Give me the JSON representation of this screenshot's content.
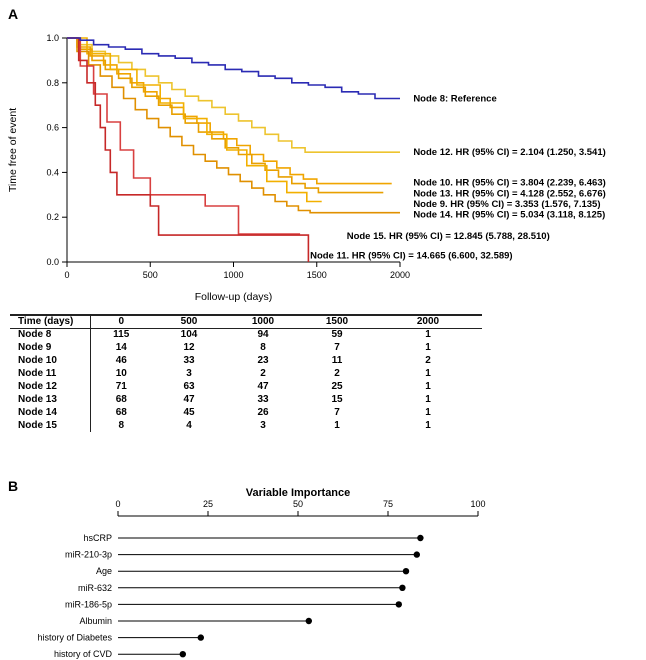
{
  "figure": {
    "panel_a_label": "A",
    "panel_b_label": "B"
  },
  "chart_data": [
    {
      "id": "km_plot",
      "type": "line",
      "subtype": "kaplan_meier_step",
      "xlabel": "Follow-up (days)",
      "ylabel": "Time free of event",
      "xlim": [
        0,
        2000
      ],
      "ylim": [
        0,
        1
      ],
      "x_ticks": [
        0,
        500,
        1000,
        1500,
        2000
      ],
      "y_ticks": [
        0,
        0.2,
        0.4,
        0.6,
        0.8,
        1
      ],
      "grid": false,
      "legend": "right-margin-annotations",
      "series": [
        {
          "name": "Node 12",
          "label": "Node 12. HR (95% CI) = 2.104 (1.250, 3.541)",
          "color": "#EDC42F",
          "label_x": 2080,
          "label_y": 0.49,
          "steps": [
            [
              0,
              1.0
            ],
            [
              70,
              0.97
            ],
            [
              150,
              0.94
            ],
            [
              230,
              0.92
            ],
            [
              310,
              0.89
            ],
            [
              390,
              0.86
            ],
            [
              470,
              0.83
            ],
            [
              550,
              0.8
            ],
            [
              630,
              0.77
            ],
            [
              710,
              0.74
            ],
            [
              790,
              0.72
            ],
            [
              870,
              0.69
            ],
            [
              950,
              0.66
            ],
            [
              1030,
              0.63
            ],
            [
              1110,
              0.6
            ],
            [
              1190,
              0.57
            ],
            [
              1270,
              0.54
            ],
            [
              1350,
              0.51
            ],
            [
              1430,
              0.49
            ],
            [
              2000,
              0.49
            ]
          ]
        },
        {
          "name": "Node 10",
          "label": "Node 10. HR (95% CI) = 3.804 (2.239, 6.463)",
          "color": "#F0A500",
          "label_x": 2080,
          "label_y": 0.355,
          "steps": [
            [
              0,
              1.0
            ],
            [
              60,
              0.96
            ],
            [
              140,
              0.92
            ],
            [
              220,
              0.88
            ],
            [
              300,
              0.84
            ],
            [
              380,
              0.8
            ],
            [
              460,
              0.76
            ],
            [
              540,
              0.73
            ],
            [
              620,
              0.69
            ],
            [
              700,
              0.65
            ],
            [
              780,
              0.62
            ],
            [
              860,
              0.58
            ],
            [
              940,
              0.55
            ],
            [
              1020,
              0.52
            ],
            [
              1100,
              0.48
            ],
            [
              1180,
              0.45
            ],
            [
              1260,
              0.42
            ],
            [
              1340,
              0.39
            ],
            [
              1420,
              0.37
            ],
            [
              1500,
              0.35
            ],
            [
              1950,
              0.35
            ]
          ]
        },
        {
          "name": "Node 13",
          "label": "Node 13. HR (95% CI) = 4.128 (2.552, 6.676)",
          "color": "#E8A000",
          "label_x": 2080,
          "label_y": 0.305,
          "steps": [
            [
              0,
              1.0
            ],
            [
              70,
              0.95
            ],
            [
              150,
              0.9
            ],
            [
              230,
              0.86
            ],
            [
              310,
              0.82
            ],
            [
              390,
              0.78
            ],
            [
              470,
              0.74
            ],
            [
              550,
              0.7
            ],
            [
              630,
              0.66
            ],
            [
              710,
              0.62
            ],
            [
              790,
              0.58
            ],
            [
              870,
              0.55
            ],
            [
              950,
              0.51
            ],
            [
              1030,
              0.48
            ],
            [
              1110,
              0.44
            ],
            [
              1190,
              0.41
            ],
            [
              1270,
              0.38
            ],
            [
              1350,
              0.35
            ],
            [
              1430,
              0.33
            ],
            [
              1510,
              0.31
            ],
            [
              1900,
              0.31
            ]
          ]
        },
        {
          "name": "Node 9",
          "label": "Node 9. HR (95% CI) = 3.353 (1.576, 7.135)",
          "color": "#F2B000",
          "label_x": 2080,
          "label_y": 0.258,
          "steps": [
            [
              0,
              1.0
            ],
            [
              120,
              0.93
            ],
            [
              260,
              0.86
            ],
            [
              420,
              0.79
            ],
            [
              560,
              0.71
            ],
            [
              700,
              0.64
            ],
            [
              840,
              0.57
            ],
            [
              960,
              0.5
            ],
            [
              1080,
              0.43
            ],
            [
              1200,
              0.36
            ],
            [
              1320,
              0.31
            ],
            [
              1440,
              0.27
            ],
            [
              1530,
              0.27
            ]
          ]
        },
        {
          "name": "Node 14",
          "label": "Node 14. HR (95% CI) = 5.034 (3.118, 8.125)",
          "color": "#E09000",
          "label_x": 2080,
          "label_y": 0.212,
          "steps": [
            [
              0,
              1.0
            ],
            [
              60,
              0.94
            ],
            [
              130,
              0.88
            ],
            [
              200,
              0.83
            ],
            [
              270,
              0.78
            ],
            [
              340,
              0.73
            ],
            [
              410,
              0.68
            ],
            [
              480,
              0.64
            ],
            [
              550,
              0.6
            ],
            [
              620,
              0.56
            ],
            [
              690,
              0.52
            ],
            [
              760,
              0.48
            ],
            [
              830,
              0.45
            ],
            [
              900,
              0.42
            ],
            [
              970,
              0.39
            ],
            [
              1040,
              0.36
            ],
            [
              1110,
              0.33
            ],
            [
              1180,
              0.3
            ],
            [
              1250,
              0.27
            ],
            [
              1320,
              0.25
            ],
            [
              1390,
              0.23
            ],
            [
              1460,
              0.22
            ],
            [
              2000,
              0.22
            ]
          ]
        },
        {
          "name": "Node 15",
          "label": "Node 15. HR (95% CI) = 12.845 (5.788, 28.510)",
          "color": "#D84040",
          "label_x": 1680,
          "label_y": 0.115,
          "steps": [
            [
              0,
              1.0
            ],
            [
              80,
              0.875
            ],
            [
              160,
              0.75
            ],
            [
              240,
              0.625
            ],
            [
              320,
              0.5
            ],
            [
              400,
              0.375
            ],
            [
              500,
              0.3
            ],
            [
              760,
              0.3
            ],
            [
              830,
              0.25
            ],
            [
              980,
              0.25
            ],
            [
              1030,
              0.125
            ],
            [
              1400,
              0.125
            ]
          ]
        },
        {
          "name": "Node 11",
          "label": "Node 11. HR (95% CI) = 14.665 (6.600, 32.589)",
          "color": "#C62828",
          "label_x": 1460,
          "label_y": 0.028,
          "steps": [
            [
              0,
              1.0
            ],
            [
              70,
              0.9
            ],
            [
              120,
              0.8
            ],
            [
              170,
              0.7
            ],
            [
              200,
              0.6
            ],
            [
              230,
              0.5
            ],
            [
              260,
              0.4
            ],
            [
              300,
              0.3
            ],
            [
              450,
              0.3
            ],
            [
              500,
              0.25
            ],
            [
              550,
              0.12
            ],
            [
              1400,
              0.12
            ],
            [
              1450,
              0.0
            ]
          ]
        },
        {
          "name": "Node 8",
          "label": "Node 8: Reference",
          "color": "#2B2BB4",
          "label_x": 2080,
          "label_y": 0.73,
          "steps": [
            [
              0,
              1.0
            ],
            [
              80,
              0.99
            ],
            [
              160,
              0.97
            ],
            [
              250,
              0.96
            ],
            [
              350,
              0.95
            ],
            [
              450,
              0.93
            ],
            [
              550,
              0.92
            ],
            [
              650,
              0.91
            ],
            [
              750,
              0.89
            ],
            [
              850,
              0.88
            ],
            [
              950,
              0.86
            ],
            [
              1050,
              0.85
            ],
            [
              1150,
              0.83
            ],
            [
              1250,
              0.82
            ],
            [
              1350,
              0.8
            ],
            [
              1450,
              0.79
            ],
            [
              1550,
              0.78
            ],
            [
              1650,
              0.76
            ],
            [
              1750,
              0.75
            ],
            [
              1850,
              0.73
            ],
            [
              2000,
              0.73
            ]
          ]
        }
      ]
    },
    {
      "id": "risk_table",
      "type": "table",
      "header": [
        "Time (days)",
        "0",
        "500",
        "1000",
        "1500",
        "2000"
      ],
      "rows": [
        {
          "label": "Node 8",
          "values": [
            "115",
            "104",
            "94",
            "59",
            "1"
          ]
        },
        {
          "label": "Node 9",
          "values": [
            "14",
            "12",
            "8",
            "7",
            "1"
          ]
        },
        {
          "label": "Node 10",
          "values": [
            "46",
            "33",
            "23",
            "11",
            "2"
          ]
        },
        {
          "label": "Node 11",
          "values": [
            "10",
            "3",
            "2",
            "2",
            "1"
          ]
        },
        {
          "label": "Node 12",
          "values": [
            "71",
            "63",
            "47",
            "25",
            "1"
          ]
        },
        {
          "label": "Node 13",
          "values": [
            "68",
            "47",
            "33",
            "15",
            "1"
          ]
        },
        {
          "label": "Node 14",
          "values": [
            "68",
            "45",
            "26",
            "7",
            "1"
          ]
        },
        {
          "label": "Node 15",
          "values": [
            "8",
            "4",
            "3",
            "1",
            "1"
          ]
        }
      ]
    },
    {
      "id": "variable_importance",
      "type": "lollipop",
      "title": "Variable Importance",
      "xlim": [
        0,
        100
      ],
      "x_ticks": [
        0,
        25,
        50,
        75,
        100
      ],
      "axis_position": "top",
      "dot_color": "#000000",
      "categories": [
        "hsCRP",
        "miR-210-3p",
        "Age",
        "miR-632",
        "miR-186-5p",
        "Albumin",
        "history of Diabetes",
        "history of CVD"
      ],
      "values": [
        84,
        83,
        80,
        79,
        78,
        53,
        23,
        18
      ]
    }
  ]
}
